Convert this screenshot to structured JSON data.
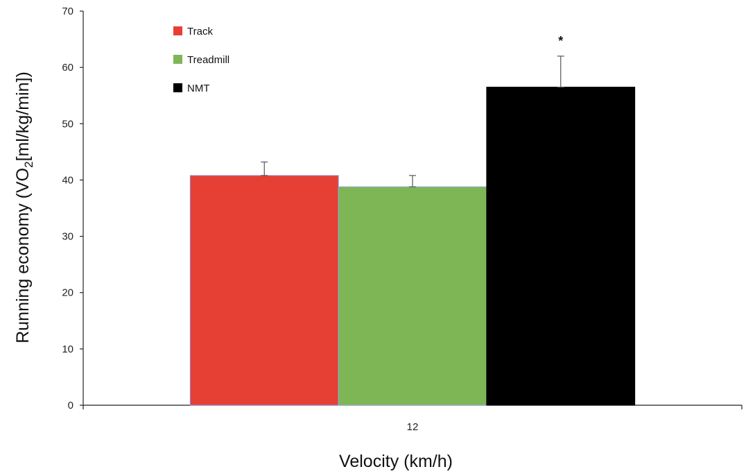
{
  "chart_data": {
    "type": "bar",
    "ylabel_main": "Running economy (VO",
    "ylabel_sub": "2",
    "ylabel_rest": "[ml/kg/min])",
    "xlabel": "Velocity (km/h)",
    "categories": [
      "12"
    ],
    "series": [
      {
        "name": "Track",
        "values": [
          40.8
        ],
        "error": [
          2.4
        ],
        "color": "#e64034"
      },
      {
        "name": "Treadmill",
        "values": [
          38.8
        ],
        "error": [
          2.0
        ],
        "color": "#7eb656"
      },
      {
        "name": "NMT",
        "values": [
          56.5
        ],
        "error": [
          5.5
        ],
        "color": "#000000"
      }
    ],
    "yticks": [
      "0",
      "10",
      "20",
      "30",
      "40",
      "50",
      "60",
      "70"
    ],
    "ylim": [
      0,
      70
    ],
    "grid": false,
    "legend_position": "top-left",
    "annotations": [
      {
        "text": "*",
        "series": "NMT"
      }
    ]
  }
}
